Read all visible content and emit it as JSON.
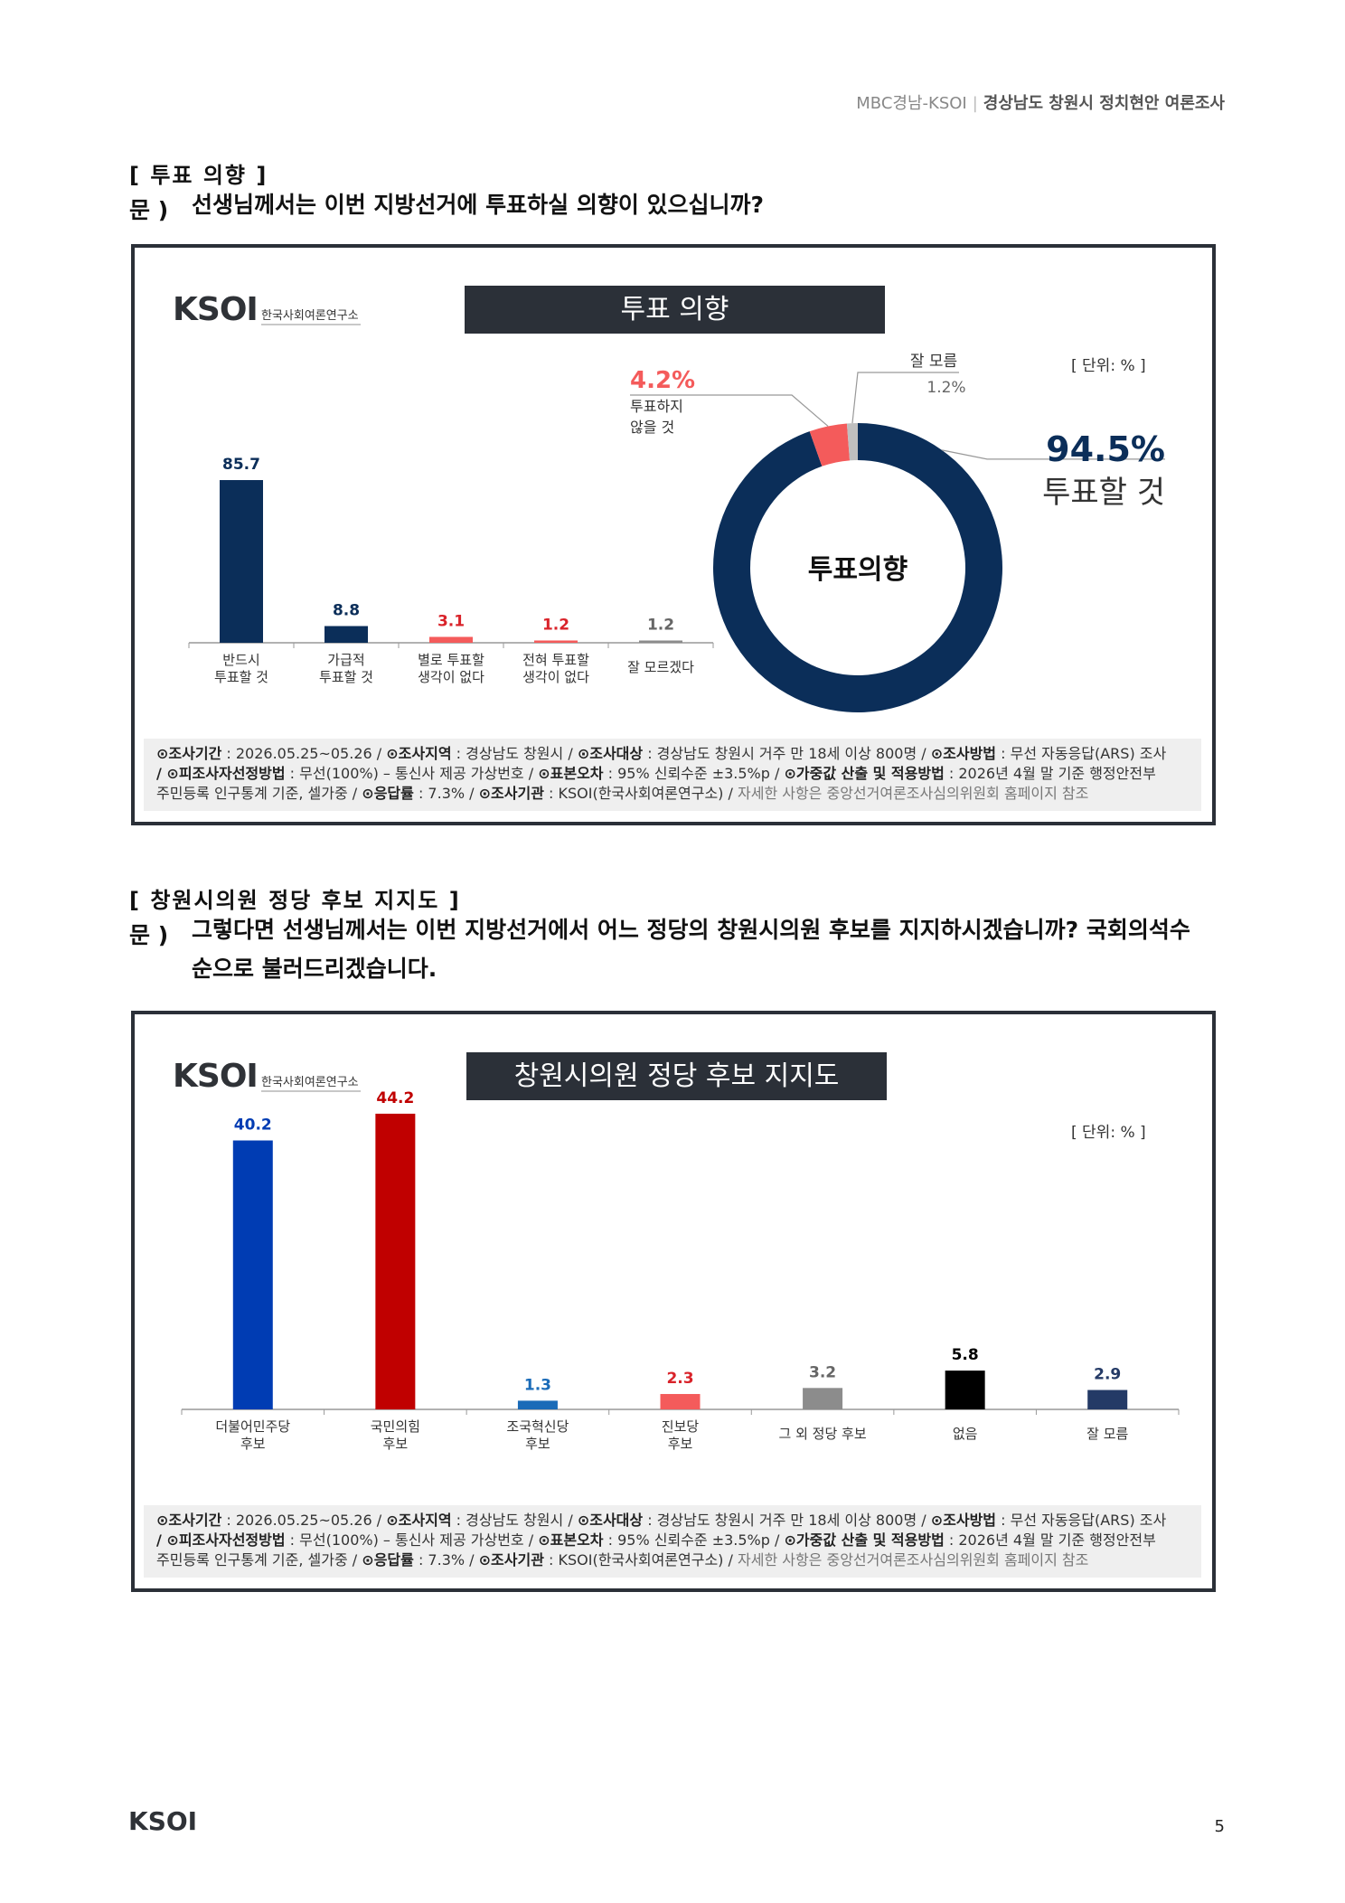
{
  "header": {
    "left": "MBC경남-KSOI",
    "right": "경상남도 창원시 정치현안 여론조사"
  },
  "section1": {
    "title": "[ 투표 의향 ]",
    "q_prefix": "문 )",
    "question_lines": [
      "선생님께서는 이번 지방선거에 투표하실 의향이 있으십니까?"
    ]
  },
  "section2": {
    "title": "[ 창원시의원 정당 후보 지지도 ]",
    "q_prefix": "문 )",
    "question_lines": [
      "그렇다면 선생님께서는 이번 지방선거에서 어느 정당의 창원시의원 후보를 지지하시겠습니까? 국회의석수",
      "순으로 불러드리겠습니다."
    ]
  },
  "logo": {
    "text": "KSOI",
    "subtitle": "한국사회여론연구소"
  },
  "footnote": {
    "l1a_label": "⊙조사기간",
    "l1a_value": " : 2026.05.25~05.26 / ",
    "l1b_label": "⊙조사지역",
    "l1b_value": " : 경상남도 창원시 / ",
    "l1c_label": "⊙조사대상",
    "l1c_value": " : 경상남도 창원시 거주 만 18세 이상 800명 / ",
    "l1d_label": "⊙조사방법",
    "l1d_value": " : 무선 자동응답(ARS) 조사",
    "l2a_label": "/ ⊙피조사자선정방법",
    "l2a_value": " : 무선(100%) – 통신사 제공 가상번호 / ",
    "l2b_label": "⊙표본오차",
    "l2b_value": " : 95% 신뢰수준 ±3.5%p / ",
    "l2c_label": "⊙가중값 산출 및 적용방법",
    "l2c_value": " : 2026년 4월 말 기준 행정안전부",
    "l3a_value": "주민등록 인구통계 기준, 셀가중 / ",
    "l3b_label": "⊙응답률",
    "l3b_value": " : 7.3% / ",
    "l3c_label": "⊙조사기관",
    "l3c_value": " : KSOI(한국사회여론연구소) / ",
    "l3d_value": "자세한 사항은 중앙선거여론조사심의위원회 홈페이지 참조"
  },
  "page_number": "5",
  "chart_data": [
    {
      "type": "bar",
      "title": "투표 의향",
      "unit": "[ 단위: % ]",
      "categories": [
        [
          "반드시",
          "투표할 것"
        ],
        [
          "가급적",
          "투표할 것"
        ],
        [
          "별로 투표할",
          "생각이 없다"
        ],
        [
          "전혀 투표할",
          "생각이 없다"
        ],
        [
          "잘 모르겠다"
        ]
      ],
      "values": [
        85.7,
        8.8,
        3.1,
        1.2,
        1.2
      ],
      "value_labels": [
        "85.7",
        "8.8",
        "3.1",
        "1.2",
        "1.2"
      ],
      "colors": [
        "#0b2e59",
        "#0b2e59",
        "#f45b5b",
        "#f45b5b",
        "#8c8c8c"
      ],
      "label_colors": [
        "#0b2e59",
        "#0b2e59",
        "#d9232a",
        "#d9232a",
        "#666666"
      ],
      "ylim": [
        0,
        100
      ]
    },
    {
      "type": "pie",
      "title": "투표의향",
      "slices": [
        {
          "label": "투표할 것",
          "value": 94.5,
          "value_label": "94.5%",
          "color": "#0b2e59"
        },
        {
          "label": "투표하지 않을 것",
          "label_lines": [
            "투표하지",
            "않을 것"
          ],
          "value": 4.2,
          "value_label": "4.2%",
          "color": "#f45b5b"
        },
        {
          "label": "잘 모름",
          "value": 1.2,
          "value_label": "1.2%",
          "color": "#bfbfbf"
        }
      ]
    },
    {
      "type": "bar",
      "title": "창원시의원 정당 후보 지지도",
      "unit": "[ 단위: % ]",
      "categories": [
        [
          "더불어민주당",
          "후보"
        ],
        [
          "국민의힘",
          "후보"
        ],
        [
          "조국혁신당",
          "후보"
        ],
        [
          "진보당",
          "후보"
        ],
        [
          "그 외 정당 후보"
        ],
        [
          "없음"
        ],
        [
          "잘 모름"
        ]
      ],
      "values": [
        40.2,
        44.2,
        1.3,
        2.3,
        3.2,
        5.8,
        2.9
      ],
      "value_labels": [
        "40.2",
        "44.2",
        "1.3",
        "2.3",
        "3.2",
        "5.8",
        "2.9"
      ],
      "colors": [
        "#003cb3",
        "#c00000",
        "#1a6bb8",
        "#f45b5b",
        "#8c8c8c",
        "#000000",
        "#243a66"
      ],
      "label_colors": [
        "#003cb3",
        "#c00000",
        "#1a6bb8",
        "#d9232a",
        "#666666",
        "#000000",
        "#243a66"
      ],
      "ylim": [
        0,
        50
      ]
    }
  ]
}
